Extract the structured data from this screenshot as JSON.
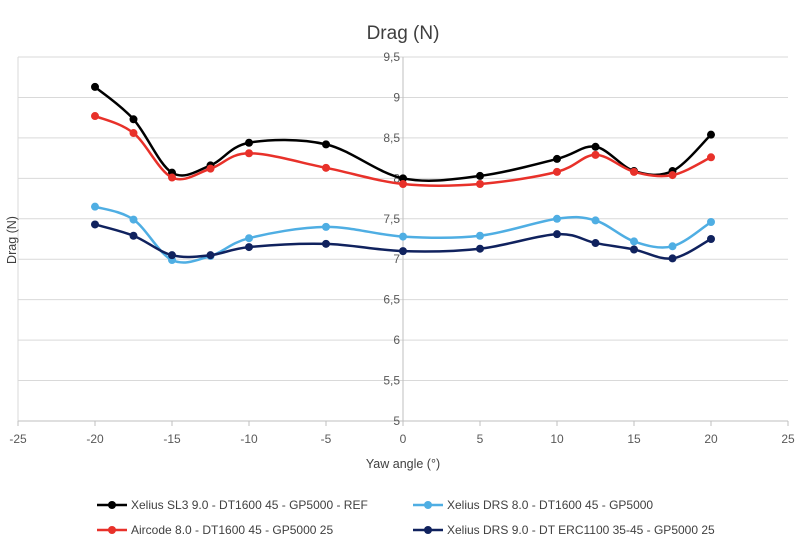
{
  "chart_data": {
    "type": "line",
    "title": "Drag (N)",
    "xlabel": "Yaw angle (°)",
    "ylabel": "Drag (N)",
    "xlim": [
      -25,
      25
    ],
    "ylim": [
      5,
      9.5
    ],
    "xticks": [
      -25,
      -20,
      -15,
      -10,
      -5,
      0,
      5,
      10,
      15,
      20,
      25
    ],
    "yticks": [
      5,
      5.5,
      6,
      6.5,
      7,
      7.5,
      8,
      8.5,
      9,
      9.5
    ],
    "xtick_labels": [
      "-25",
      "-20",
      "-15",
      "-10",
      "-5",
      "0",
      "5",
      "10",
      "15",
      "20",
      "25"
    ],
    "ytick_labels": [
      "5",
      "5,5",
      "6",
      "6,5",
      "7",
      "7,5",
      "8",
      "8,5",
      "9",
      "9,5"
    ],
    "grid": "horizontal",
    "x": [
      -20,
      -17.5,
      -15,
      -12.5,
      -10,
      -5,
      0,
      5,
      10,
      12.5,
      15,
      17.5,
      20
    ],
    "series": [
      {
        "name": "Xelius SL3 9.0 - DT1600 45 - GP5000 - REF",
        "color": "#000000",
        "values": [
          9.13,
          8.73,
          8.07,
          8.16,
          8.44,
          8.42,
          8.0,
          8.03,
          8.24,
          8.39,
          8.09,
          8.09,
          8.54
        ]
      },
      {
        "name": "Aircode 8.0 - DT1600 45 - GP5000 25",
        "color": "#e8312a",
        "values": [
          8.77,
          8.56,
          8.01,
          8.12,
          8.31,
          8.13,
          7.93,
          7.93,
          8.08,
          8.29,
          8.08,
          8.04,
          8.26
        ]
      },
      {
        "name": "Xelius DRS 8.0 - DT1600 45 - GP5000",
        "color": "#4faee3",
        "values": [
          7.65,
          7.49,
          6.99,
          7.04,
          7.26,
          7.4,
          7.28,
          7.29,
          7.5,
          7.48,
          7.22,
          7.16,
          7.46
        ]
      },
      {
        "name": "Xelius DRS 9.0 - DT ERC1100 35-45 - GP5000  25",
        "color": "#10225e",
        "values": [
          7.43,
          7.29,
          7.05,
          7.05,
          7.15,
          7.19,
          7.1,
          7.13,
          7.31,
          7.2,
          7.12,
          7.01,
          7.25
        ]
      }
    ],
    "legend": "bottom"
  }
}
